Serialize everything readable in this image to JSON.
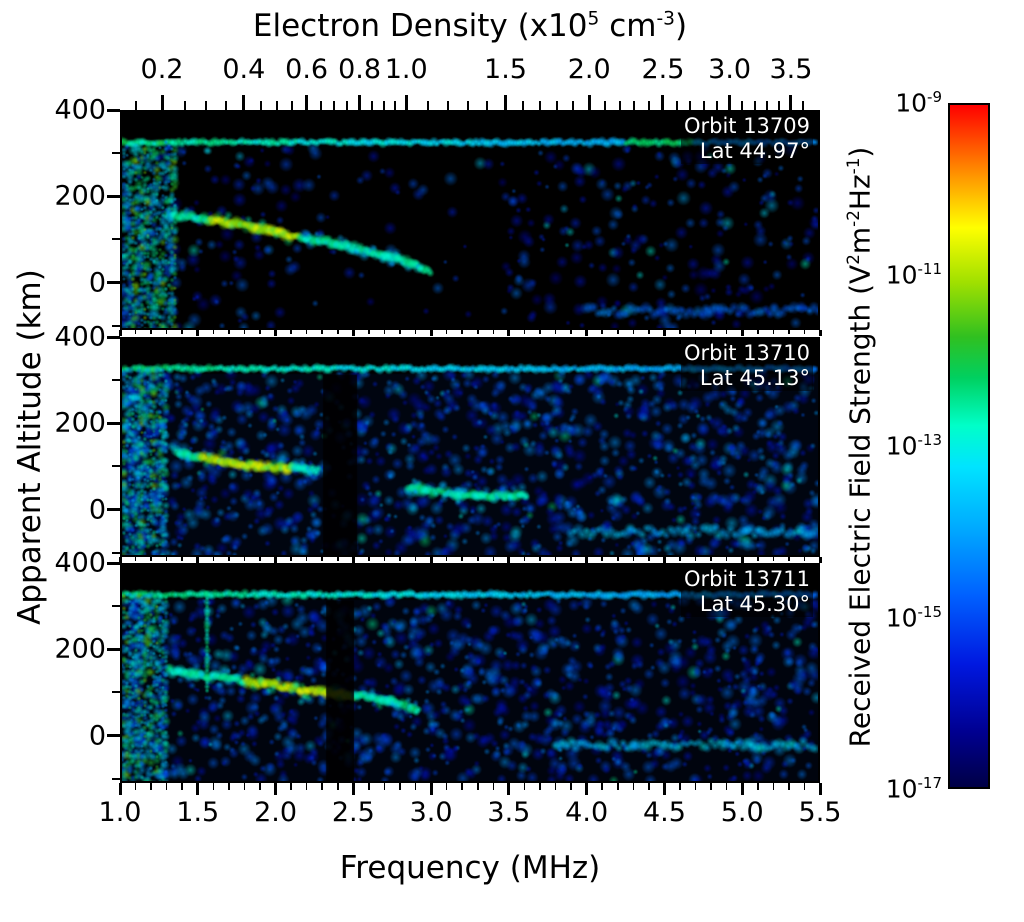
{
  "chart_data": {
    "type": "heatmap",
    "description": "Three radar-sounding spectrogram panels (ionograms) of received electric field strength versus frequency and apparent altitude for three successive orbits",
    "x_axis": {
      "title": "Frequency (MHz)",
      "min": 1.0,
      "max": 5.5,
      "major_ticks": [
        1.0,
        1.5,
        2.0,
        2.5,
        3.0,
        3.5,
        4.0,
        4.5,
        5.0,
        5.5
      ],
      "tick_labels": [
        "1.0",
        "1.5",
        "2.0",
        "2.5",
        "3.0",
        "3.5",
        "4.0",
        "4.5",
        "5.0",
        "5.5"
      ],
      "minor_step": 0.1
    },
    "y_axis": {
      "title": "Apparent Altitude (km)",
      "min": -110,
      "max": 400,
      "major_ticks": [
        400,
        200,
        0
      ],
      "tick_labels": [
        "400",
        "200",
        "0"
      ],
      "minor_ticks": [
        300,
        100,
        -100
      ]
    },
    "top_axis": {
      "title_parts": [
        "Electron Density (x10",
        "5",
        " cm",
        "-3",
        ")"
      ],
      "sqrt_scale_mhz": 2.84,
      "ticks": [
        0.2,
        0.4,
        0.6,
        0.8,
        1.0,
        1.5,
        2.0,
        2.5,
        3.0,
        3.5
      ],
      "tick_labels": [
        "0.2",
        "0.4",
        "0.6",
        "0.8",
        "1.0",
        "1.5",
        "2.0",
        "2.5",
        "3.0",
        "3.5"
      ],
      "minor_ticks": [
        0.15,
        0.25,
        0.3,
        0.35,
        0.45,
        0.5,
        0.55,
        0.65,
        0.7,
        0.75,
        0.85,
        0.9,
        0.95,
        1.1,
        1.2,
        1.3,
        1.4,
        1.6,
        1.7,
        1.8,
        1.9,
        2.1,
        2.2,
        2.3,
        2.4,
        2.6,
        2.7,
        2.8,
        2.9,
        3.1,
        3.2,
        3.3,
        3.4,
        3.6
      ]
    },
    "colorbar": {
      "title_parts": [
        "Received Electric Field Strength (V",
        "2",
        "m",
        "-2",
        "Hz",
        "-1",
        ")"
      ],
      "scale": "log10",
      "tick_exponents": [
        -9,
        -11,
        -13,
        -15,
        -17
      ],
      "tick_parts": [
        [
          "10",
          "-9"
        ],
        [
          "10",
          "-11"
        ],
        [
          "10",
          "-13"
        ],
        [
          "10",
          "-15"
        ],
        [
          "10",
          "-17"
        ]
      ],
      "stops": [
        [
          0,
          "#000046"
        ],
        [
          0.08,
          "#000090"
        ],
        [
          0.18,
          "#0018e0"
        ],
        [
          0.28,
          "#0060ff"
        ],
        [
          0.38,
          "#00aaff"
        ],
        [
          0.47,
          "#00e4ff"
        ],
        [
          0.53,
          "#00ffc8"
        ],
        [
          0.6,
          "#00d060"
        ],
        [
          0.66,
          "#30c020"
        ],
        [
          0.74,
          "#a0e000"
        ],
        [
          0.82,
          "#ffff00"
        ],
        [
          0.9,
          "#ff9000"
        ],
        [
          1,
          "#ff0000"
        ]
      ]
    },
    "panels": [
      {
        "label": "Orbit 13709",
        "sublabel": "Lat 44.97°",
        "render": {
          "seed": 13709,
          "wash": 0,
          "noise_blobs": 520,
          "noise_val": [
            0.08,
            0.32
          ],
          "sparse_mid": [
            2.15,
            3.45,
            0.72
          ],
          "left_noise_fmax": 1.35,
          "surface_alt": 328,
          "surface_bright": [
            [
              4.25,
              4.7,
              0.6
            ]
          ],
          "trace": [
            [
              1.3,
              158
            ],
            [
              1.45,
              150
            ],
            [
              1.6,
              143
            ],
            [
              1.75,
              136
            ],
            [
              1.9,
              124
            ],
            [
              2.05,
              112
            ],
            [
              2.2,
              102
            ],
            [
              2.35,
              92
            ],
            [
              2.5,
              80
            ],
            [
              2.65,
              65
            ],
            [
              2.8,
              50
            ],
            [
              2.9,
              38
            ],
            [
              3.0,
              18
            ]
          ],
          "trace_peak": [
            1.55,
            2.15
          ],
          "dark_bands": [],
          "streaks": [
            [
              4.0,
              5.5,
              -70,
              0.3
            ]
          ],
          "spikes": []
        }
      },
      {
        "label": "Orbit 13710",
        "sublabel": "Lat 45.13°",
        "render": {
          "seed": 13710,
          "wash": 0.1,
          "noise_blobs": 1350,
          "noise_val": [
            0.1,
            0.38
          ],
          "sparse_mid": null,
          "left_noise_fmax": 1.3,
          "surface_alt": 330,
          "surface_bright": [],
          "trace": [
            [
              1.35,
              135
            ],
            [
              1.5,
              122
            ],
            [
              1.65,
              112
            ],
            [
              1.8,
              104
            ],
            [
              1.95,
              98
            ],
            [
              2.1,
              94
            ],
            [
              2.28,
              90
            ]
          ],
          "trace_peak": [
            1.5,
            2.1
          ],
          "trace2": [
            [
              2.85,
              50
            ],
            [
              3.0,
              40
            ],
            [
              3.15,
              34
            ],
            [
              3.3,
              30
            ],
            [
              3.45,
              29
            ],
            [
              3.62,
              32
            ]
          ],
          "dark_bands": [
            [
              2.3,
              2.52
            ]
          ],
          "streaks": [
            [
              3.9,
              5.5,
              -55,
              0.42
            ]
          ],
          "spikes": []
        }
      },
      {
        "label": "Orbit 13711",
        "sublabel": "Lat 45.30°",
        "render": {
          "seed": 13711,
          "wash": 0.09,
          "noise_blobs": 1250,
          "noise_val": [
            0.1,
            0.36
          ],
          "sparse_mid": null,
          "left_noise_fmax": 1.3,
          "surface_alt": 330,
          "surface_bright": [],
          "trace": [
            [
              1.3,
              152
            ],
            [
              1.45,
              143
            ],
            [
              1.6,
              136
            ],
            [
              1.75,
              128
            ],
            [
              1.9,
              120
            ],
            [
              2.05,
              112
            ],
            [
              2.2,
              104
            ],
            [
              2.35,
              98
            ],
            [
              2.5,
              92
            ],
            [
              2.65,
              85
            ],
            [
              2.8,
              72
            ],
            [
              2.92,
              55
            ]
          ],
          "trace_peak": [
            1.8,
            2.5
          ],
          "dark_bands": [
            [
              2.32,
              2.5
            ]
          ],
          "streaks": [
            [
              3.8,
              5.5,
              -25,
              0.45
            ]
          ],
          "spikes": [
            [
              1.55,
              330,
              100,
              0.55
            ]
          ]
        }
      }
    ]
  }
}
